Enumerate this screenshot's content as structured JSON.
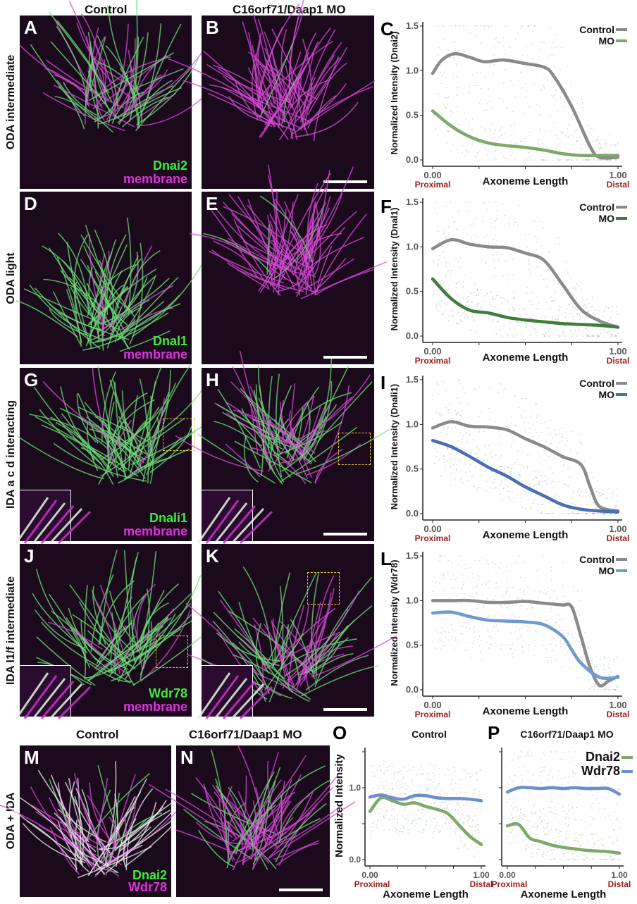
{
  "column_headers": {
    "control": "Control",
    "mo": "C16orf71/Daap1 MO"
  },
  "rows": [
    {
      "label": "ODA intermediate",
      "panels": [
        {
          "letter": "A",
          "stain1": "Dnai2",
          "stain2": "membrane"
        },
        {
          "letter": "B",
          "scale_bar": true
        }
      ]
    },
    {
      "label": "ODA light",
      "panels": [
        {
          "letter": "D",
          "stain1": "Dnal1",
          "stain2": "membrane"
        },
        {
          "letter": "E",
          "scale_bar": true
        }
      ]
    },
    {
      "label": "IDA a c d interacting",
      "panels": [
        {
          "letter": "G",
          "stain1": "Dnali1",
          "stain2": "membrane",
          "inset": true
        },
        {
          "letter": "H",
          "scale_bar": true,
          "inset": true
        }
      ]
    },
    {
      "label": "IDA I1/f intermediate",
      "panels": [
        {
          "letter": "J",
          "stain1": "Wdr78",
          "stain2": "membrane",
          "inset": true
        },
        {
          "letter": "K",
          "scale_bar": true,
          "inset": true
        }
      ]
    }
  ],
  "bottom": {
    "label": "ODA + IDA",
    "header_control": "Control",
    "header_mo": "C16orf71/Daap1 MO",
    "panels": [
      {
        "letter": "M",
        "stain1": "Dnai2",
        "stain2": "Wdr78"
      },
      {
        "letter": "N",
        "scale_bar": true
      }
    ]
  },
  "colors": {
    "green": "#33e03a",
    "magenta": "#e020e0",
    "control": "#8a8a8a",
    "proximal_distal": "#9b1c1c"
  },
  "chart_data": [
    {
      "letter": "C",
      "type": "line",
      "ylabel": "Normalized Intensity (Dnai2)",
      "xlabel": "Axoneme Length",
      "x_ticks": [
        "0.00",
        "1.00"
      ],
      "x_end_labels": [
        "Proximal",
        "Distal"
      ],
      "y_ticks": [
        "0.0",
        "0.5",
        "1.0",
        "1.5"
      ],
      "ylim": [
        0,
        1.5
      ],
      "xlim": [
        0,
        1
      ],
      "legend": "top-right",
      "series": [
        {
          "name": "Control",
          "color": "#8a8a8a",
          "x": [
            0,
            0.05,
            0.12,
            0.2,
            0.28,
            0.38,
            0.5,
            0.6,
            0.65,
            0.75,
            0.85,
            0.9,
            1
          ],
          "y": [
            0.97,
            1.12,
            1.19,
            1.15,
            1.1,
            1.12,
            1.08,
            1.04,
            0.95,
            0.6,
            0.15,
            0.03,
            0.03
          ]
        },
        {
          "name": "MO",
          "color": "#7fa86a",
          "x": [
            0,
            0.1,
            0.2,
            0.3,
            0.4,
            0.5,
            0.6,
            0.7,
            0.8,
            0.9,
            1
          ],
          "y": [
            0.55,
            0.38,
            0.26,
            0.19,
            0.16,
            0.14,
            0.11,
            0.07,
            0.05,
            0.05,
            0.05
          ]
        }
      ]
    },
    {
      "letter": "F",
      "type": "line",
      "ylabel": "Normalized Intensity (Dnal1)",
      "xlabel": "Axoneme Length",
      "x_ticks": [
        "0.00",
        "1.00"
      ],
      "x_end_labels": [
        "Proximal",
        "Distal"
      ],
      "y_ticks": [
        "0.0",
        "0.5",
        "1.0",
        "1.5"
      ],
      "ylim": [
        0,
        1.5
      ],
      "xlim": [
        0,
        1
      ],
      "legend": "top-right",
      "series": [
        {
          "name": "Control",
          "color": "#8a8a8a",
          "x": [
            0,
            0.1,
            0.2,
            0.3,
            0.4,
            0.5,
            0.6,
            0.7,
            0.8,
            0.9,
            1
          ],
          "y": [
            0.98,
            1.08,
            1.03,
            1.0,
            0.99,
            0.93,
            0.85,
            0.58,
            0.3,
            0.17,
            0.1
          ]
        },
        {
          "name": "MO",
          "color": "#3e7d3c",
          "x": [
            0,
            0.1,
            0.2,
            0.3,
            0.4,
            0.5,
            0.6,
            0.7,
            0.8,
            0.9,
            1
          ],
          "y": [
            0.64,
            0.42,
            0.29,
            0.26,
            0.21,
            0.18,
            0.16,
            0.14,
            0.13,
            0.12,
            0.1
          ]
        }
      ]
    },
    {
      "letter": "I",
      "type": "line",
      "ylabel": "Normalized Intensity (Dnali1)",
      "xlabel": "Axoneme Length",
      "x_ticks": [
        "0.00",
        "1.00"
      ],
      "x_end_labels": [
        "Proximal",
        "Distal"
      ],
      "y_ticks": [
        "0.0",
        "0.5",
        "1.0",
        "1.5"
      ],
      "ylim": [
        0,
        1.5
      ],
      "xlim": [
        0,
        1
      ],
      "legend": "top-right",
      "series": [
        {
          "name": "Control",
          "color": "#8a8a8a",
          "x": [
            0,
            0.1,
            0.2,
            0.3,
            0.4,
            0.5,
            0.6,
            0.7,
            0.8,
            0.85,
            0.9,
            1
          ],
          "y": [
            0.96,
            1.03,
            0.98,
            0.97,
            0.94,
            0.84,
            0.75,
            0.64,
            0.55,
            0.3,
            0.08,
            0.03
          ]
        },
        {
          "name": "MO",
          "color": "#4a6fb0",
          "x": [
            0,
            0.1,
            0.2,
            0.3,
            0.4,
            0.5,
            0.6,
            0.7,
            0.8,
            0.9,
            1
          ],
          "y": [
            0.82,
            0.75,
            0.64,
            0.52,
            0.42,
            0.3,
            0.2,
            0.1,
            0.05,
            0.03,
            0.02
          ]
        }
      ]
    },
    {
      "letter": "L",
      "type": "line",
      "ylabel": "Normalized Intensity (Wdr78)",
      "xlabel": "Axoneme Length",
      "x_ticks": [
        "0.00",
        "1.00"
      ],
      "x_end_labels": [
        "Proximal",
        "Distal"
      ],
      "y_ticks": [
        "0.0",
        "0.5",
        "1.0",
        "1.5"
      ],
      "ylim": [
        0,
        1.5
      ],
      "xlim": [
        0,
        1
      ],
      "legend": "top-right",
      "series": [
        {
          "name": "Control",
          "color": "#8a8a8a",
          "x": [
            0,
            0.1,
            0.2,
            0.3,
            0.4,
            0.5,
            0.6,
            0.7,
            0.75,
            0.8,
            0.85,
            0.9,
            0.95,
            1
          ],
          "y": [
            1.0,
            1.0,
            1.0,
            0.98,
            0.98,
            0.99,
            0.97,
            0.95,
            0.93,
            0.6,
            0.25,
            0.05,
            0.1,
            0.15
          ]
        },
        {
          "name": "MO",
          "color": "#6d9bd0",
          "x": [
            0,
            0.1,
            0.2,
            0.3,
            0.4,
            0.5,
            0.6,
            0.7,
            0.75,
            0.8,
            0.9,
            1
          ],
          "y": [
            0.86,
            0.87,
            0.82,
            0.78,
            0.77,
            0.76,
            0.73,
            0.6,
            0.45,
            0.3,
            0.14,
            0.14
          ]
        }
      ]
    },
    {
      "letter": "O",
      "type": "line",
      "title": "Control",
      "ylabel": "Normalized Intensity",
      "xlabel": "Axoneme Length",
      "x_ticks": [
        "0.00",
        "1.00"
      ],
      "x_end_labels": [
        "Proximal",
        "Distal"
      ],
      "y_ticks": [
        "0.0",
        "1.0"
      ],
      "ylim": [
        0,
        1.5
      ],
      "xlim": [
        0,
        1
      ],
      "series": [
        {
          "name": "Dnai2",
          "color": "#7fa86a",
          "x": [
            0,
            0.1,
            0.2,
            0.3,
            0.4,
            0.5,
            0.6,
            0.7,
            0.8,
            0.9,
            1
          ],
          "y": [
            0.67,
            0.86,
            0.82,
            0.77,
            0.79,
            0.74,
            0.7,
            0.64,
            0.48,
            0.32,
            0.21
          ]
        },
        {
          "name": "Wdr78",
          "color": "#6d8fcf",
          "x": [
            0,
            0.1,
            0.2,
            0.3,
            0.4,
            0.5,
            0.6,
            0.7,
            0.8,
            0.9,
            1
          ],
          "y": [
            0.87,
            0.9,
            0.86,
            0.84,
            0.89,
            0.89,
            0.86,
            0.85,
            0.85,
            0.84,
            0.82
          ]
        }
      ]
    },
    {
      "letter": "P",
      "type": "line",
      "title": "C16orf71/Daap1 MO",
      "xlabel": "Axoneme Length",
      "x_ticks": [
        "0.00",
        "1.00"
      ],
      "x_end_labels": [
        "Proximal",
        "Distal"
      ],
      "ylim": [
        0,
        1.5
      ],
      "xlim": [
        0,
        1
      ],
      "legend": "top-right",
      "series": [
        {
          "name": "Dnai2",
          "color": "#7fa86a",
          "x": [
            0,
            0.1,
            0.2,
            0.3,
            0.4,
            0.5,
            0.6,
            0.7,
            0.8,
            0.9,
            1
          ],
          "y": [
            0.47,
            0.49,
            0.3,
            0.25,
            0.2,
            0.17,
            0.15,
            0.13,
            0.12,
            0.11,
            0.09
          ]
        },
        {
          "name": "Wdr78",
          "color": "#6d8fcf",
          "x": [
            0,
            0.1,
            0.2,
            0.3,
            0.4,
            0.5,
            0.6,
            0.7,
            0.8,
            0.9,
            1
          ],
          "y": [
            0.94,
            1.0,
            1.0,
            0.99,
            1.0,
            0.99,
            1.0,
            0.99,
            0.99,
            0.99,
            0.91
          ]
        }
      ]
    }
  ]
}
